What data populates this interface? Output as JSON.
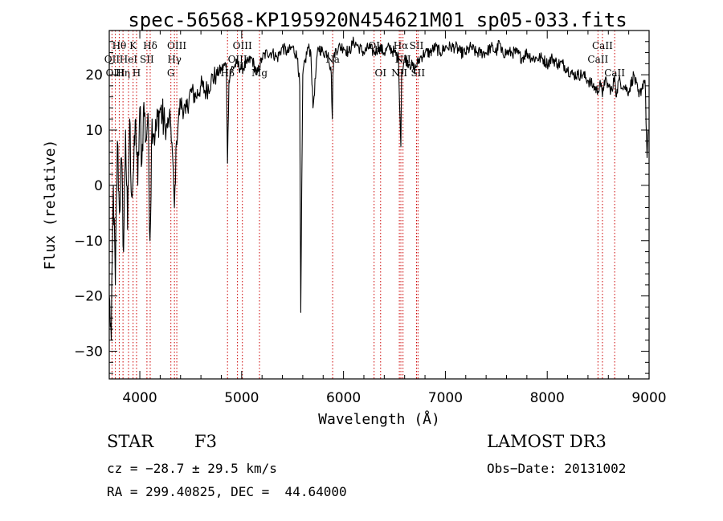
{
  "chart_data": {
    "type": "line",
    "title": "spec-56568-KP195920N454621M01_sp05-033.fits",
    "xlabel": "Wavelength (Å)",
    "ylabel": "Flux (relative)",
    "xlim": [
      3700,
      9000
    ],
    "ylim": [
      -35,
      28
    ],
    "xticks": [
      4000,
      5000,
      6000,
      7000,
      8000,
      9000
    ],
    "yticks": [
      -30,
      -20,
      -10,
      0,
      10,
      20
    ],
    "grid": false,
    "series": [
      {
        "name": "flux",
        "x": [
          3700,
          3720,
          3740,
          3760,
          3780,
          3800,
          3820,
          3840,
          3860,
          3880,
          3900,
          3920,
          3940,
          3960,
          3980,
          4000,
          4020,
          4040,
          4060,
          4080,
          4100,
          4120,
          4150,
          4200,
          4250,
          4300,
          4320,
          4340,
          4360,
          4380,
          4400,
          4450,
          4500,
          4550,
          4600,
          4650,
          4700,
          4750,
          4800,
          4850,
          4861,
          4875,
          4900,
          4950,
          5000,
          5050,
          5100,
          5150,
          5200,
          5250,
          5300,
          5350,
          5400,
          5450,
          5500,
          5550,
          5570,
          5580,
          5600,
          5650,
          5680,
          5700,
          5750,
          5800,
          5850,
          5880,
          5890,
          5896,
          5910,
          5950,
          6000,
          6050,
          6100,
          6150,
          6200,
          6250,
          6300,
          6350,
          6400,
          6450,
          6500,
          6540,
          6555,
          6563,
          6570,
          6600,
          6650,
          6700,
          6750,
          6800,
          6850,
          6900,
          6950,
          7000,
          7050,
          7100,
          7150,
          7200,
          7250,
          7300,
          7350,
          7400,
          7450,
          7500,
          7530,
          7550,
          7600,
          7650,
          7700,
          7750,
          7800,
          7850,
          7900,
          7950,
          8000,
          8050,
          8100,
          8150,
          8200,
          8250,
          8300,
          8350,
          8400,
          8450,
          8498,
          8520,
          8542,
          8560,
          8600,
          8640,
          8662,
          8680,
          8700,
          8750,
          8800,
          8850,
          8900,
          8950,
          8960,
          8980,
          8990
        ],
        "values": [
          -20,
          -28,
          0,
          -18,
          8,
          -5,
          5,
          -12,
          10,
          -8,
          12,
          -2,
          3,
          12,
          0,
          14,
          4,
          15,
          8,
          13,
          -10,
          12,
          9,
          14,
          10,
          12,
          6,
          -4,
          8,
          12,
          15,
          13,
          17,
          16,
          18,
          17,
          19,
          20,
          21,
          22,
          4,
          19,
          21,
          22,
          21,
          22,
          23,
          20,
          23,
          24,
          24,
          23,
          25,
          24,
          25,
          23,
          18,
          -23,
          20,
          25,
          24,
          14,
          25,
          24,
          24,
          20,
          12,
          20,
          24,
          25,
          25,
          24,
          26,
          25,
          24,
          25,
          24,
          25,
          24,
          25,
          24,
          23,
          12,
          7,
          20,
          23,
          22,
          21,
          23,
          24,
          24,
          25,
          24,
          25,
          25,
          25,
          24,
          24,
          25,
          24,
          24,
          24,
          25,
          24,
          26,
          24,
          24,
          24,
          24,
          23,
          24,
          23,
          23,
          23,
          22,
          23,
          22,
          22,
          21,
          20,
          20,
          20,
          19,
          18,
          17,
          19,
          16,
          19,
          18,
          17,
          20,
          16,
          19,
          18,
          17,
          20,
          16,
          19,
          19,
          5,
          10
        ]
      }
    ],
    "line_markers": [
      {
        "label": "Hθ",
        "wavelength": 3798,
        "row": 0
      },
      {
        "label": "OII",
        "wavelength": 3727,
        "row": 1
      },
      {
        "label": "OIII",
        "wavelength": 3760,
        "row": 2
      },
      {
        "label": "Hη",
        "wavelength": 3835,
        "row": 2
      },
      {
        "label": "HeI",
        "wavelength": 3889,
        "row": 1
      },
      {
        "label": "K",
        "wavelength": 3934,
        "row": 0
      },
      {
        "label": "H",
        "wavelength": 3968,
        "row": 2
      },
      {
        "label": "SII",
        "wavelength": 4070,
        "row": 1
      },
      {
        "label": "Hδ",
        "wavelength": 4102,
        "row": 0
      },
      {
        "label": "OIII",
        "wavelength": 4363,
        "row": 0
      },
      {
        "label": "Hγ",
        "wavelength": 4340,
        "row": 1
      },
      {
        "label": "G",
        "wavelength": 4305,
        "row": 2
      },
      {
        "label": "OIII",
        "wavelength": 5007,
        "row": 0
      },
      {
        "label": "OIII",
        "wavelength": 4959,
        "row": 1
      },
      {
        "label": "Hβ",
        "wavelength": 4861,
        "row": 2
      },
      {
        "label": "Mg",
        "wavelength": 5175,
        "row": 2
      },
      {
        "label": "Na",
        "wavelength": 5893,
        "row": 1
      },
      {
        "label": "OI",
        "wavelength": 6300,
        "row": 0
      },
      {
        "label": "OI",
        "wavelength": 6364,
        "row": 2
      },
      {
        "label": "Hα",
        "wavelength": 6563,
        "row": 0
      },
      {
        "label": "SII",
        "wavelength": 6717,
        "row": 0
      },
      {
        "label": "NII",
        "wavelength": 6548,
        "row": 2
      },
      {
        "label": "NII",
        "wavelength": 6584,
        "row": 1
      },
      {
        "label": "SII",
        "wavelength": 6731,
        "row": 2
      },
      {
        "label": "CaII",
        "wavelength": 8542,
        "row": 0
      },
      {
        "label": "CaII",
        "wavelength": 8498,
        "row": 1
      },
      {
        "label": "CaII",
        "wavelength": 8662,
        "row": 2
      }
    ],
    "colors": {
      "axis": "#000000",
      "spectrum": "#000000",
      "marker": "#cc0000"
    }
  },
  "info": {
    "class": "STAR",
    "subclass": "F3",
    "survey": "LAMOST DR3",
    "cz": "cz = −28.7 ± 29.5 km/s",
    "obs_date": "Obs−Date: 20131002",
    "radec": "RA = 299.40825, DEC =  44.64000"
  }
}
